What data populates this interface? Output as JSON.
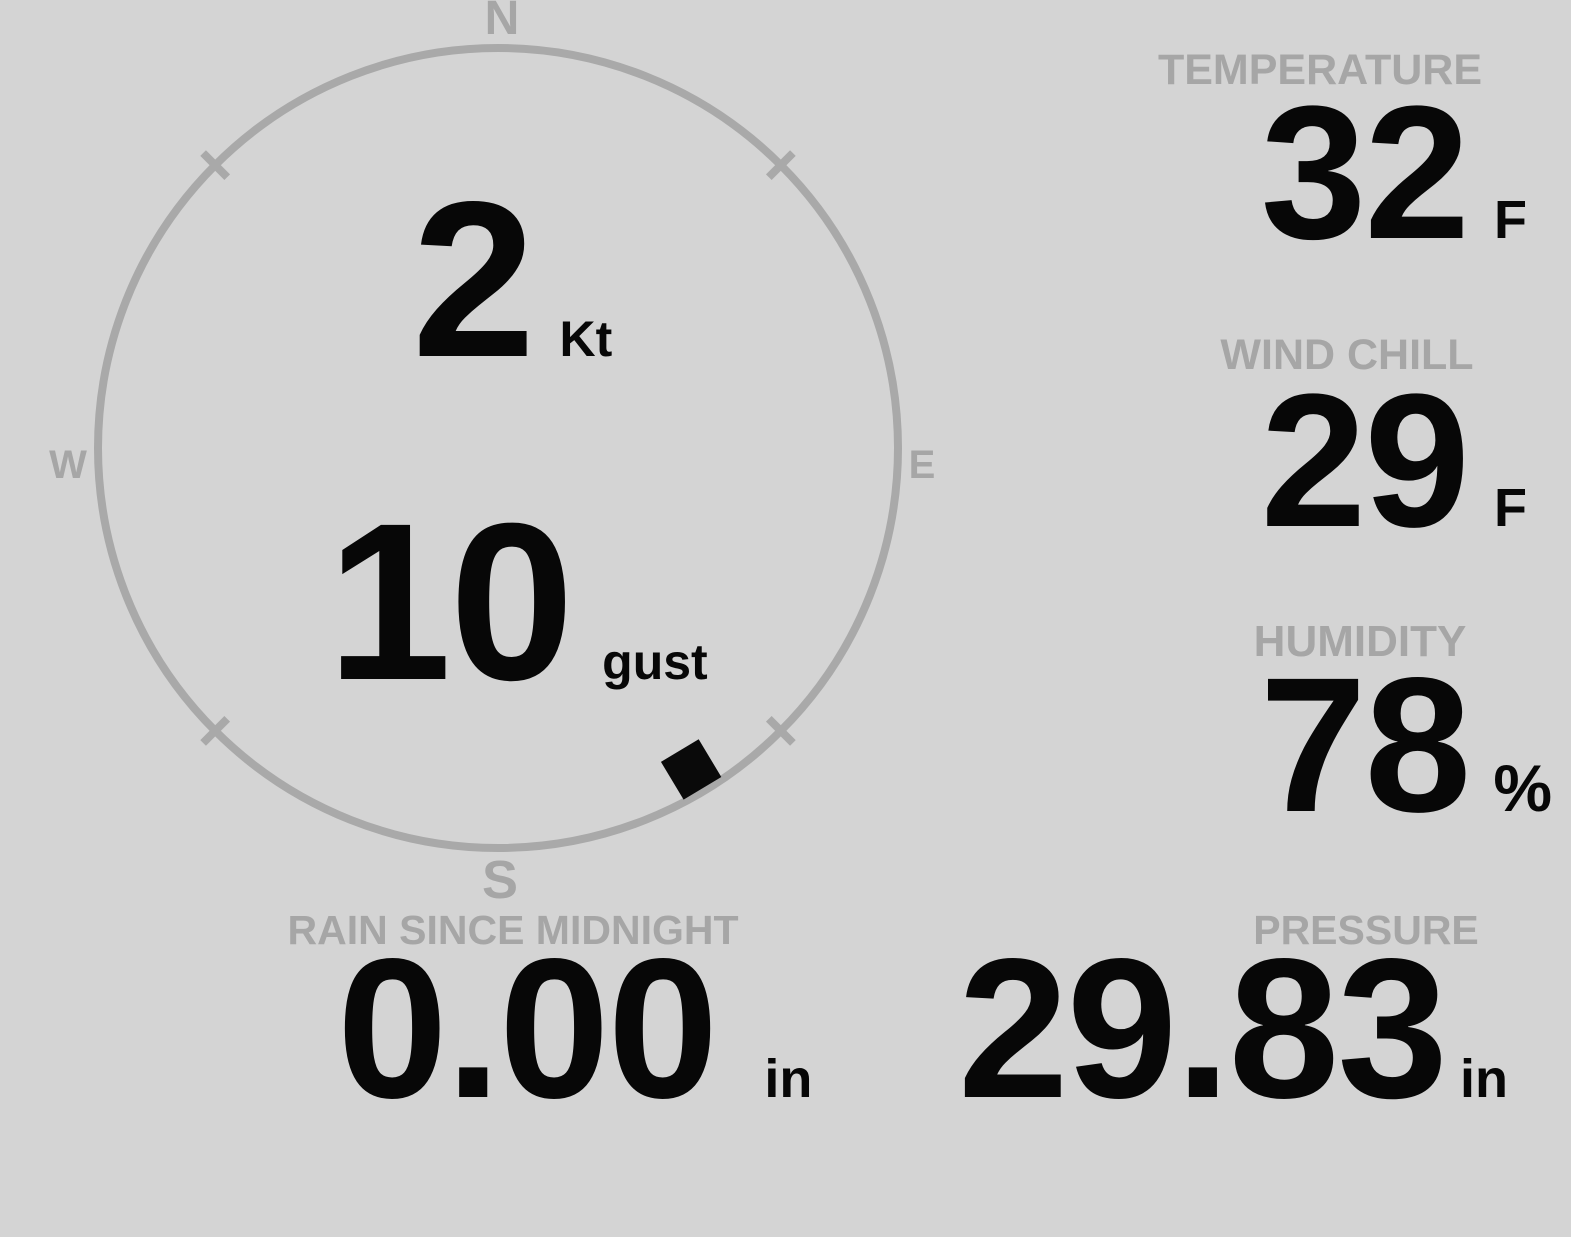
{
  "theme": {
    "background": "#d4d4d4",
    "muted_gray": "#a6a6a6",
    "ring_gray": "#a9a9a9",
    "value_black": "#070707"
  },
  "wind": {
    "speed_value": "2",
    "speed_unit": "Kt",
    "gust_value": "10",
    "gust_unit": "gust",
    "direction_deg": 149,
    "compass": {
      "north": "N",
      "east": "E",
      "south": "S",
      "west": "W"
    }
  },
  "metrics": {
    "temperature": {
      "label": "TEMPERATURE",
      "value": "32",
      "unit": "F"
    },
    "wind_chill": {
      "label": "WIND CHILL",
      "value": "29",
      "unit": "F"
    },
    "humidity": {
      "label": "HUMIDITY",
      "value": "78",
      "unit": "%"
    },
    "rain": {
      "label": "RAIN SINCE MIDNIGHT",
      "value": "0.00",
      "unit": "in"
    },
    "pressure": {
      "label": "PRESSURE",
      "value": "29.83",
      "unit": "in"
    }
  }
}
